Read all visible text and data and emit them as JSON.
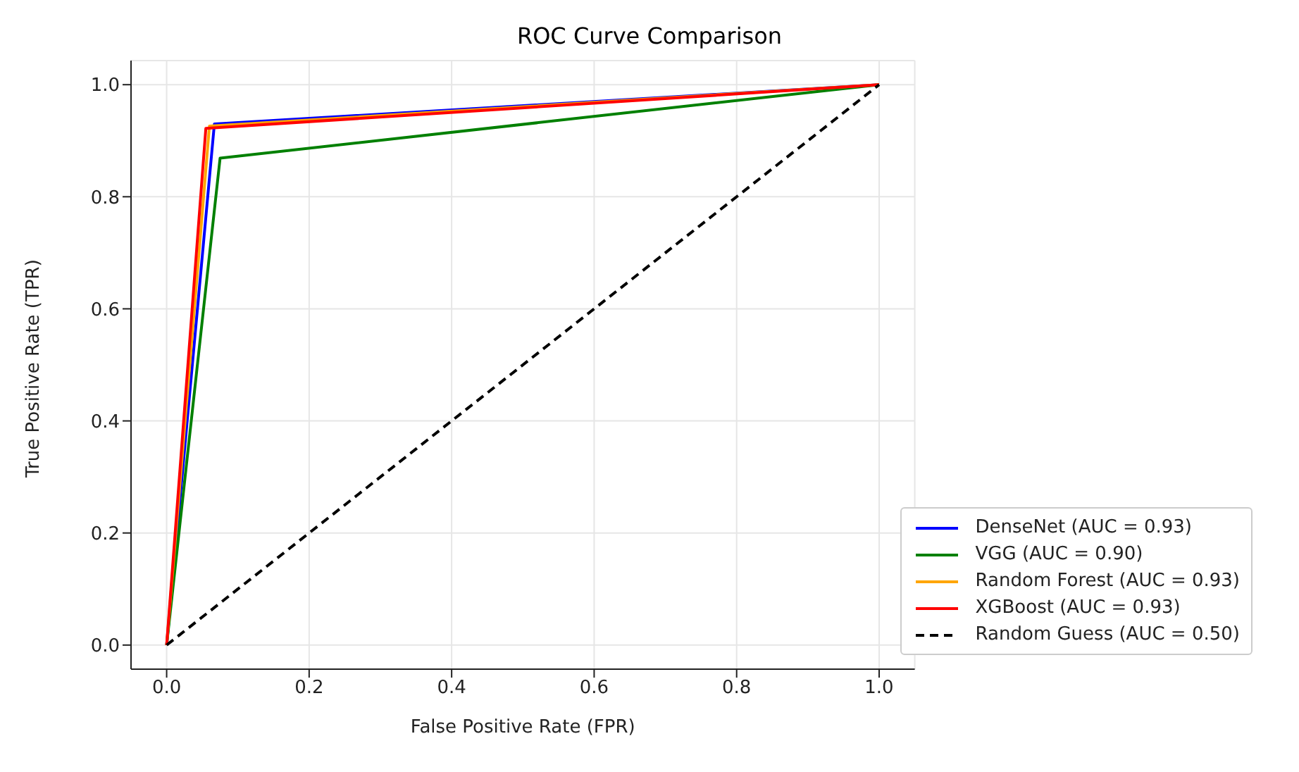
{
  "chart_data": {
    "type": "line",
    "title": "ROC Curve Comparison",
    "xlabel": "False Positive Rate (FPR)",
    "ylabel": "True Positive Rate (TPR)",
    "xlim": [
      -0.05,
      1.05
    ],
    "ylim": [
      -0.043,
      1.043
    ],
    "xticks": [
      {
        "value": 0,
        "label": "0.0"
      },
      0.2,
      0.4,
      0.6,
      0.8,
      {
        "value": 1,
        "label": "1.0"
      }
    ],
    "yticks": [
      {
        "value": 0,
        "label": "0.0"
      },
      0.2,
      0.4,
      0.6,
      0.8,
      {
        "value": 1,
        "label": "1.0"
      }
    ],
    "grid": true,
    "legend": "bottom right",
    "marker": "none",
    "series": [
      {
        "name": "DenseNet (AUC = 0.93)",
        "color": "#0000ff",
        "x": [
          0,
          0.067,
          1
        ],
        "values": [
          0,
          0.93,
          1
        ]
      },
      {
        "name": "VGG (AUC = 0.90)",
        "color": "#008000",
        "x": [
          0,
          0.075,
          1
        ],
        "values": [
          0,
          0.869,
          1
        ]
      },
      {
        "name": "Random Forest (AUC = 0.93)",
        "color": "#ffa500",
        "x": [
          0,
          0.06,
          1
        ],
        "values": [
          0,
          0.926,
          1
        ]
      },
      {
        "name": "XGBoost (AUC = 0.93)",
        "color": "#ff0000",
        "x": [
          0,
          0.055,
          1
        ],
        "values": [
          0,
          0.922,
          1
        ]
      },
      {
        "name": "Random Guess (AUC = 0.50)",
        "color": "#000000",
        "x": [
          0,
          1
        ],
        "values": [
          0,
          1
        ],
        "line_style": "dashed"
      }
    ]
  }
}
